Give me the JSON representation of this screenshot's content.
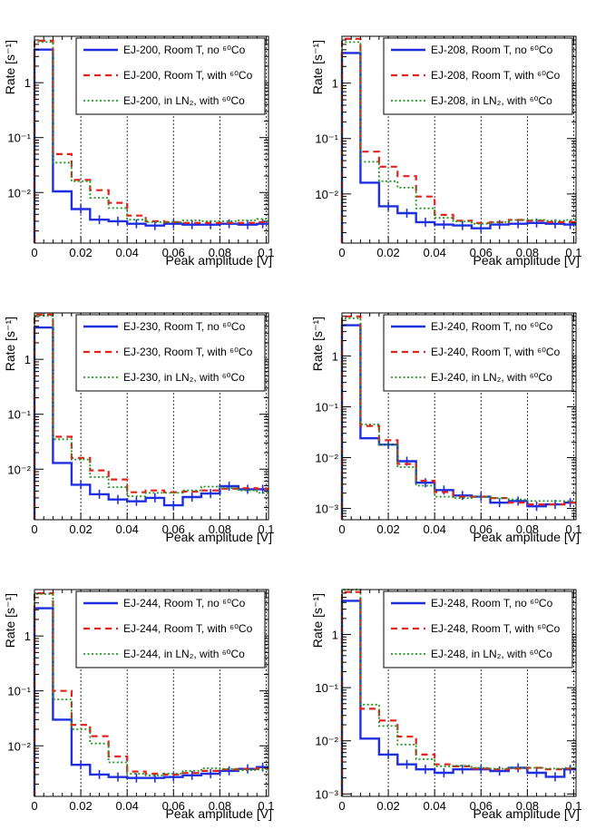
{
  "colors": {
    "no_co": "#1f2fe0",
    "with_co": "#e8201c",
    "ln2": "#1f9a1f",
    "frame": "#000000"
  },
  "chart_data": [
    {
      "type": "line",
      "title": "EJ-200",
      "xlabel": "Peak amplitude [V]",
      "ylabel": "Rate [s⁻¹]",
      "yscale": "log",
      "xlim": [
        0,
        0.101
      ],
      "ylim": [
        0.0012,
        7
      ],
      "xticks": [
        "0",
        "0.02",
        "0.04",
        "0.06",
        "0.08",
        "0.1"
      ],
      "yticks": [
        {
          "v": 1,
          "label": "1"
        },
        {
          "v": 0.1,
          "label": "10⁻¹"
        },
        {
          "v": 0.01,
          "label": "10⁻²"
        }
      ],
      "gridlines_x": [
        0.02,
        0.04,
        0.06,
        0.08,
        0.1
      ],
      "bin_edges": [
        0,
        0.008,
        0.016,
        0.024,
        0.032,
        0.04,
        0.048,
        0.056,
        0.064,
        0.072,
        0.08,
        0.088,
        0.096,
        0.101
      ],
      "legend": [
        "EJ-200, Room T, no ⁶⁰Co",
        "EJ-200, Room T, with ⁶⁰Co",
        "EJ-200, in LN₂, with ⁶⁰Co"
      ],
      "series": [
        {
          "name": "no 60Co",
          "style": "solid",
          "values": [
            4.0,
            0.0105,
            0.005,
            0.0032,
            0.003,
            0.0027,
            0.0025,
            0.0027,
            0.0026,
            0.0026,
            0.0027,
            0.0026,
            0.0027
          ]
        },
        {
          "name": "with 60Co",
          "style": "dashed",
          "values": [
            5.8,
            0.05,
            0.017,
            0.011,
            0.0065,
            0.0038,
            0.003,
            0.0029,
            0.0028,
            0.0028,
            0.0028,
            0.0028,
            0.0029
          ]
        },
        {
          "name": "LN2 with 60Co",
          "style": "dotted",
          "values": [
            5.5,
            0.035,
            0.016,
            0.008,
            0.0052,
            0.0032,
            0.0029,
            0.0029,
            0.0031,
            0.003,
            0.003,
            0.0031,
            0.0033
          ]
        }
      ]
    },
    {
      "type": "line",
      "title": "EJ-208",
      "xlabel": "Peak amplitude [V]",
      "ylabel": "Rate [s⁻¹]",
      "yscale": "log",
      "xlim": [
        0,
        0.101
      ],
      "ylim": [
        0.0013,
        7
      ],
      "xticks": [
        "0",
        "0.02",
        "0.04",
        "0.06",
        "0.08",
        "0.1"
      ],
      "yticks": [
        {
          "v": 1,
          "label": "1"
        },
        {
          "v": 0.1,
          "label": "10⁻¹"
        },
        {
          "v": 0.01,
          "label": "10⁻²"
        }
      ],
      "gridlines_x": [
        0.02,
        0.04,
        0.06,
        0.08,
        0.1
      ],
      "bin_edges": [
        0,
        0.008,
        0.016,
        0.024,
        0.032,
        0.04,
        0.048,
        0.056,
        0.064,
        0.072,
        0.08,
        0.088,
        0.096,
        0.101
      ],
      "legend": [
        "EJ-208, Room T, no ⁶⁰Co",
        "EJ-208, Room T, with ⁶⁰Co",
        "EJ-208, in LN₂, with ⁶⁰Co"
      ],
      "series": [
        {
          "name": "no 60Co",
          "style": "solid",
          "values": [
            3.5,
            0.016,
            0.006,
            0.0045,
            0.0031,
            0.0028,
            0.0027,
            0.0024,
            0.0028,
            0.0029,
            0.003,
            0.0029,
            0.0028
          ]
        },
        {
          "name": "with 60Co",
          "style": "dashed",
          "values": [
            6.3,
            0.058,
            0.031,
            0.021,
            0.009,
            0.0042,
            0.0033,
            0.003,
            0.0031,
            0.0034,
            0.0033,
            0.0031,
            0.0031
          ]
        },
        {
          "name": "LN2 with 60Co",
          "style": "dotted",
          "values": [
            5.5,
            0.038,
            0.017,
            0.013,
            0.0055,
            0.0037,
            0.0032,
            0.0029,
            0.0031,
            0.0034,
            0.0034,
            0.0033,
            0.0034
          ]
        }
      ]
    },
    {
      "type": "line",
      "title": "EJ-230",
      "xlabel": "Peak amplitude [V]",
      "ylabel": "Rate [s⁻¹]",
      "yscale": "log",
      "xlim": [
        0,
        0.101
      ],
      "ylim": [
        0.0012,
        7
      ],
      "xticks": [
        "0",
        "0.02",
        "0.04",
        "0.06",
        "0.08",
        "0.1"
      ],
      "yticks": [
        {
          "v": 1,
          "label": "1"
        },
        {
          "v": 0.1,
          "label": "10⁻¹"
        },
        {
          "v": 0.01,
          "label": "10⁻²"
        }
      ],
      "gridlines_x": [
        0.02,
        0.04,
        0.06,
        0.08,
        0.1
      ],
      "bin_edges": [
        0,
        0.008,
        0.016,
        0.024,
        0.032,
        0.04,
        0.048,
        0.056,
        0.064,
        0.072,
        0.08,
        0.088,
        0.096,
        0.101
      ],
      "legend": [
        "EJ-230, Room T, no ⁶⁰Co",
        "EJ-230, Room T, with ⁶⁰Co",
        "EJ-230, in LN₂, with ⁶⁰Co"
      ],
      "series": [
        {
          "name": "no 60Co",
          "style": "solid",
          "values": [
            3.8,
            0.013,
            0.0052,
            0.0035,
            0.0028,
            0.0026,
            0.003,
            0.0022,
            0.0031,
            0.0036,
            0.0049,
            0.0043,
            0.0043
          ]
        },
        {
          "name": "with 60Co",
          "style": "dashed",
          "values": [
            6.5,
            0.039,
            0.016,
            0.0095,
            0.0065,
            0.0038,
            0.0041,
            0.0038,
            0.0039,
            0.0041,
            0.0044,
            0.0045,
            0.0044
          ]
        },
        {
          "name": "LN2 with 60Co",
          "style": "dotted",
          "values": [
            6.2,
            0.035,
            0.015,
            0.0072,
            0.0047,
            0.0032,
            0.0037,
            0.0037,
            0.0041,
            0.0048,
            0.0045,
            0.0041,
            0.0037
          ]
        }
      ]
    },
    {
      "type": "line",
      "title": "EJ-240",
      "xlabel": "Peak amplitude [V]",
      "ylabel": "Rate [s⁻¹]",
      "yscale": "log",
      "xlim": [
        0,
        0.101
      ],
      "ylim": [
        0.0006,
        7
      ],
      "xticks": [
        "0",
        "0.02",
        "0.04",
        "0.06",
        "0.08",
        "0.1"
      ],
      "yticks": [
        {
          "v": 1,
          "label": "1"
        },
        {
          "v": 0.1,
          "label": "10⁻¹"
        },
        {
          "v": 0.01,
          "label": "10⁻²"
        },
        {
          "v": 0.001,
          "label": "10⁻³"
        }
      ],
      "gridlines_x": [
        0.02,
        0.04,
        0.06,
        0.08,
        0.1
      ],
      "bin_edges": [
        0,
        0.008,
        0.016,
        0.024,
        0.032,
        0.04,
        0.048,
        0.056,
        0.064,
        0.072,
        0.08,
        0.088,
        0.096,
        0.101
      ],
      "legend": [
        "EJ-240, Room T, no ⁶⁰Co",
        "EJ-240, Room T, with ⁶⁰Co",
        "EJ-240, in LN₂, with ⁶⁰Co"
      ],
      "series": [
        {
          "name": "no 60Co",
          "style": "solid",
          "values": [
            4.0,
            0.024,
            0.018,
            0.0085,
            0.0032,
            0.0023,
            0.0018,
            0.0017,
            0.0013,
            0.0014,
            0.0011,
            0.0012,
            0.0013
          ]
        },
        {
          "name": "with 60Co",
          "style": "dashed",
          "values": [
            6.0,
            0.042,
            0.022,
            0.0075,
            0.0035,
            0.0021,
            0.0017,
            0.0017,
            0.0016,
            0.0013,
            0.0012,
            0.0012,
            0.0013
          ]
        },
        {
          "name": "LN2 with 60Co",
          "style": "dotted",
          "values": [
            5.5,
            0.045,
            0.018,
            0.0065,
            0.0028,
            0.0017,
            0.0016,
            0.0017,
            0.0016,
            0.0015,
            0.0014,
            0.0014,
            0.0014
          ]
        }
      ]
    },
    {
      "type": "line",
      "title": "EJ-244",
      "xlabel": "Peak amplitude [V]",
      "ylabel": "Rate [s⁻¹]",
      "yscale": "log",
      "xlim": [
        0,
        0.101
      ],
      "ylim": [
        0.0012,
        7
      ],
      "xticks": [
        "0",
        "0.02",
        "0.04",
        "0.06",
        "0.08",
        "0.1"
      ],
      "yticks": [
        {
          "v": 1,
          "label": "1"
        },
        {
          "v": 0.1,
          "label": "10⁻¹"
        },
        {
          "v": 0.01,
          "label": "10⁻²"
        }
      ],
      "gridlines_x": [
        0.02,
        0.04,
        0.06,
        0.08,
        0.1
      ],
      "bin_edges": [
        0,
        0.008,
        0.016,
        0.024,
        0.032,
        0.04,
        0.048,
        0.056,
        0.064,
        0.072,
        0.08,
        0.088,
        0.096,
        0.101
      ],
      "legend": [
        "EJ-244, Room T, no ⁶⁰Co",
        "EJ-244, Room T, with ⁶⁰Co",
        "EJ-244, in LN₂, with ⁶⁰Co"
      ],
      "series": [
        {
          "name": "no 60Co",
          "style": "solid",
          "values": [
            3.2,
            0.03,
            0.0045,
            0.003,
            0.0027,
            0.0026,
            0.0026,
            0.0027,
            0.0029,
            0.0031,
            0.0035,
            0.0038,
            0.0041
          ]
        },
        {
          "name": "with 60Co",
          "style": "dashed",
          "values": [
            6.0,
            0.1,
            0.024,
            0.015,
            0.0064,
            0.0034,
            0.0031,
            0.003,
            0.0032,
            0.0035,
            0.0037,
            0.0038,
            0.0039
          ]
        },
        {
          "name": "LN2 with 60Co",
          "style": "dotted",
          "values": [
            5.8,
            0.07,
            0.02,
            0.011,
            0.005,
            0.0031,
            0.0029,
            0.0031,
            0.0035,
            0.0039,
            0.0038,
            0.0036,
            0.0037
          ]
        }
      ]
    },
    {
      "type": "line",
      "title": "EJ-248",
      "xlabel": "Peak amplitude [V]",
      "ylabel": "Rate [s⁻¹]",
      "yscale": "log",
      "xlim": [
        0,
        0.101
      ],
      "ylim": [
        0.0009,
        7
      ],
      "xticks": [
        "0",
        "0.02",
        "0.04",
        "0.06",
        "0.08",
        "0.1"
      ],
      "yticks": [
        {
          "v": 1,
          "label": "1"
        },
        {
          "v": 0.1,
          "label": "10⁻¹"
        },
        {
          "v": 0.01,
          "label": "10⁻²"
        },
        {
          "v": 0.001,
          "label": "10⁻³"
        }
      ],
      "gridlines_x": [
        0.02,
        0.04,
        0.06,
        0.08,
        0.1
      ],
      "bin_edges": [
        0,
        0.008,
        0.016,
        0.024,
        0.032,
        0.04,
        0.048,
        0.056,
        0.064,
        0.072,
        0.08,
        0.088,
        0.096,
        0.101
      ],
      "legend": [
        "EJ-248, Room T, no ⁶⁰Co",
        "EJ-248, Room T, with ⁶⁰Co",
        "EJ-248, in LN₂, with ⁶⁰Co"
      ],
      "series": [
        {
          "name": "no 60Co",
          "style": "solid",
          "values": [
            4.3,
            0.011,
            0.0055,
            0.0036,
            0.0029,
            0.0025,
            0.0029,
            0.0029,
            0.0027,
            0.0031,
            0.0025,
            0.0021,
            0.0029
          ]
        },
        {
          "name": "with 60Co",
          "style": "dashed",
          "values": [
            6.3,
            0.04,
            0.024,
            0.012,
            0.0055,
            0.0036,
            0.0033,
            0.003,
            0.0029,
            0.003,
            0.0031,
            0.0029,
            0.003
          ]
        },
        {
          "name": "LN2 with 60Co",
          "style": "dotted",
          "values": [
            7.0,
            0.048,
            0.019,
            0.0085,
            0.0045,
            0.0033,
            0.0034,
            0.0031,
            0.003,
            0.0031,
            0.0031,
            0.003,
            0.0031
          ]
        }
      ]
    }
  ]
}
